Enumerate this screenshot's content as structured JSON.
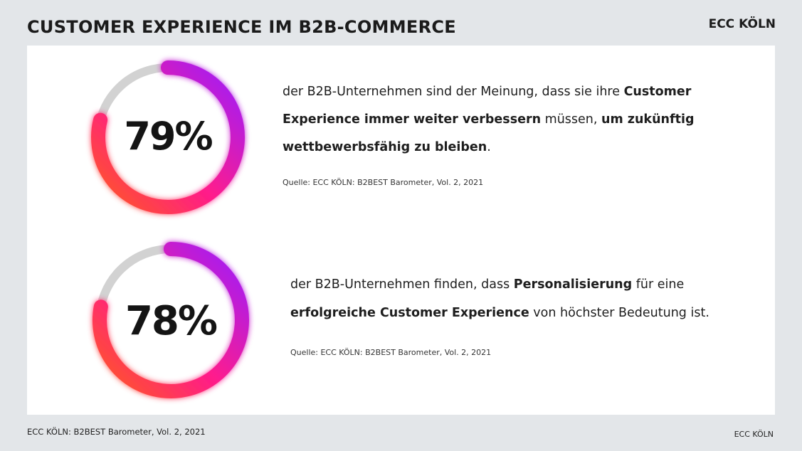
{
  "header": {
    "title": "CUSTOMER EXPERIENCE IM B2B-COMMERCE",
    "brand": "ECC KÖLN"
  },
  "footer": {
    "source": "ECC KÖLN: B2BEST Barometer, Vol. 2, 2021",
    "brand": "ECC KÖLN"
  },
  "colors": {
    "gradient_start": "#ff5a1f",
    "gradient_mid": "#ff1a8c",
    "gradient_end": "#9b1fff",
    "track": "#d2d2d2"
  },
  "chart_data": [
    {
      "type": "donut",
      "value": 79,
      "label": "79%",
      "ylim": [
        0,
        100
      ],
      "text": {
        "l1a": "der B2B-Unternehmen sind der Meinung, dass sie ihre ",
        "l1b": "Customer",
        "l2a": "Experience immer weiter verbessern",
        "l2b": " müssen, ",
        "l2c": "um zukünftig",
        "l3a": "wettbewerbsfähig zu bleiben",
        "l3b": "."
      },
      "source": "Quelle: ECC KÖLN: B2BEST Barometer, Vol. 2, 2021"
    },
    {
      "type": "donut",
      "value": 78,
      "label": "78%",
      "ylim": [
        0,
        100
      ],
      "text": {
        "l1a": "der B2B-Unternehmen finden, dass ",
        "l1b": "Personalisierung",
        "l1c": " für eine",
        "l2a": "erfolgreiche Customer Experience",
        "l2b": " von höchster Bedeutung ist."
      },
      "source": "Quelle: ECC KÖLN: B2BEST Barometer, Vol. 2, 2021"
    }
  ]
}
